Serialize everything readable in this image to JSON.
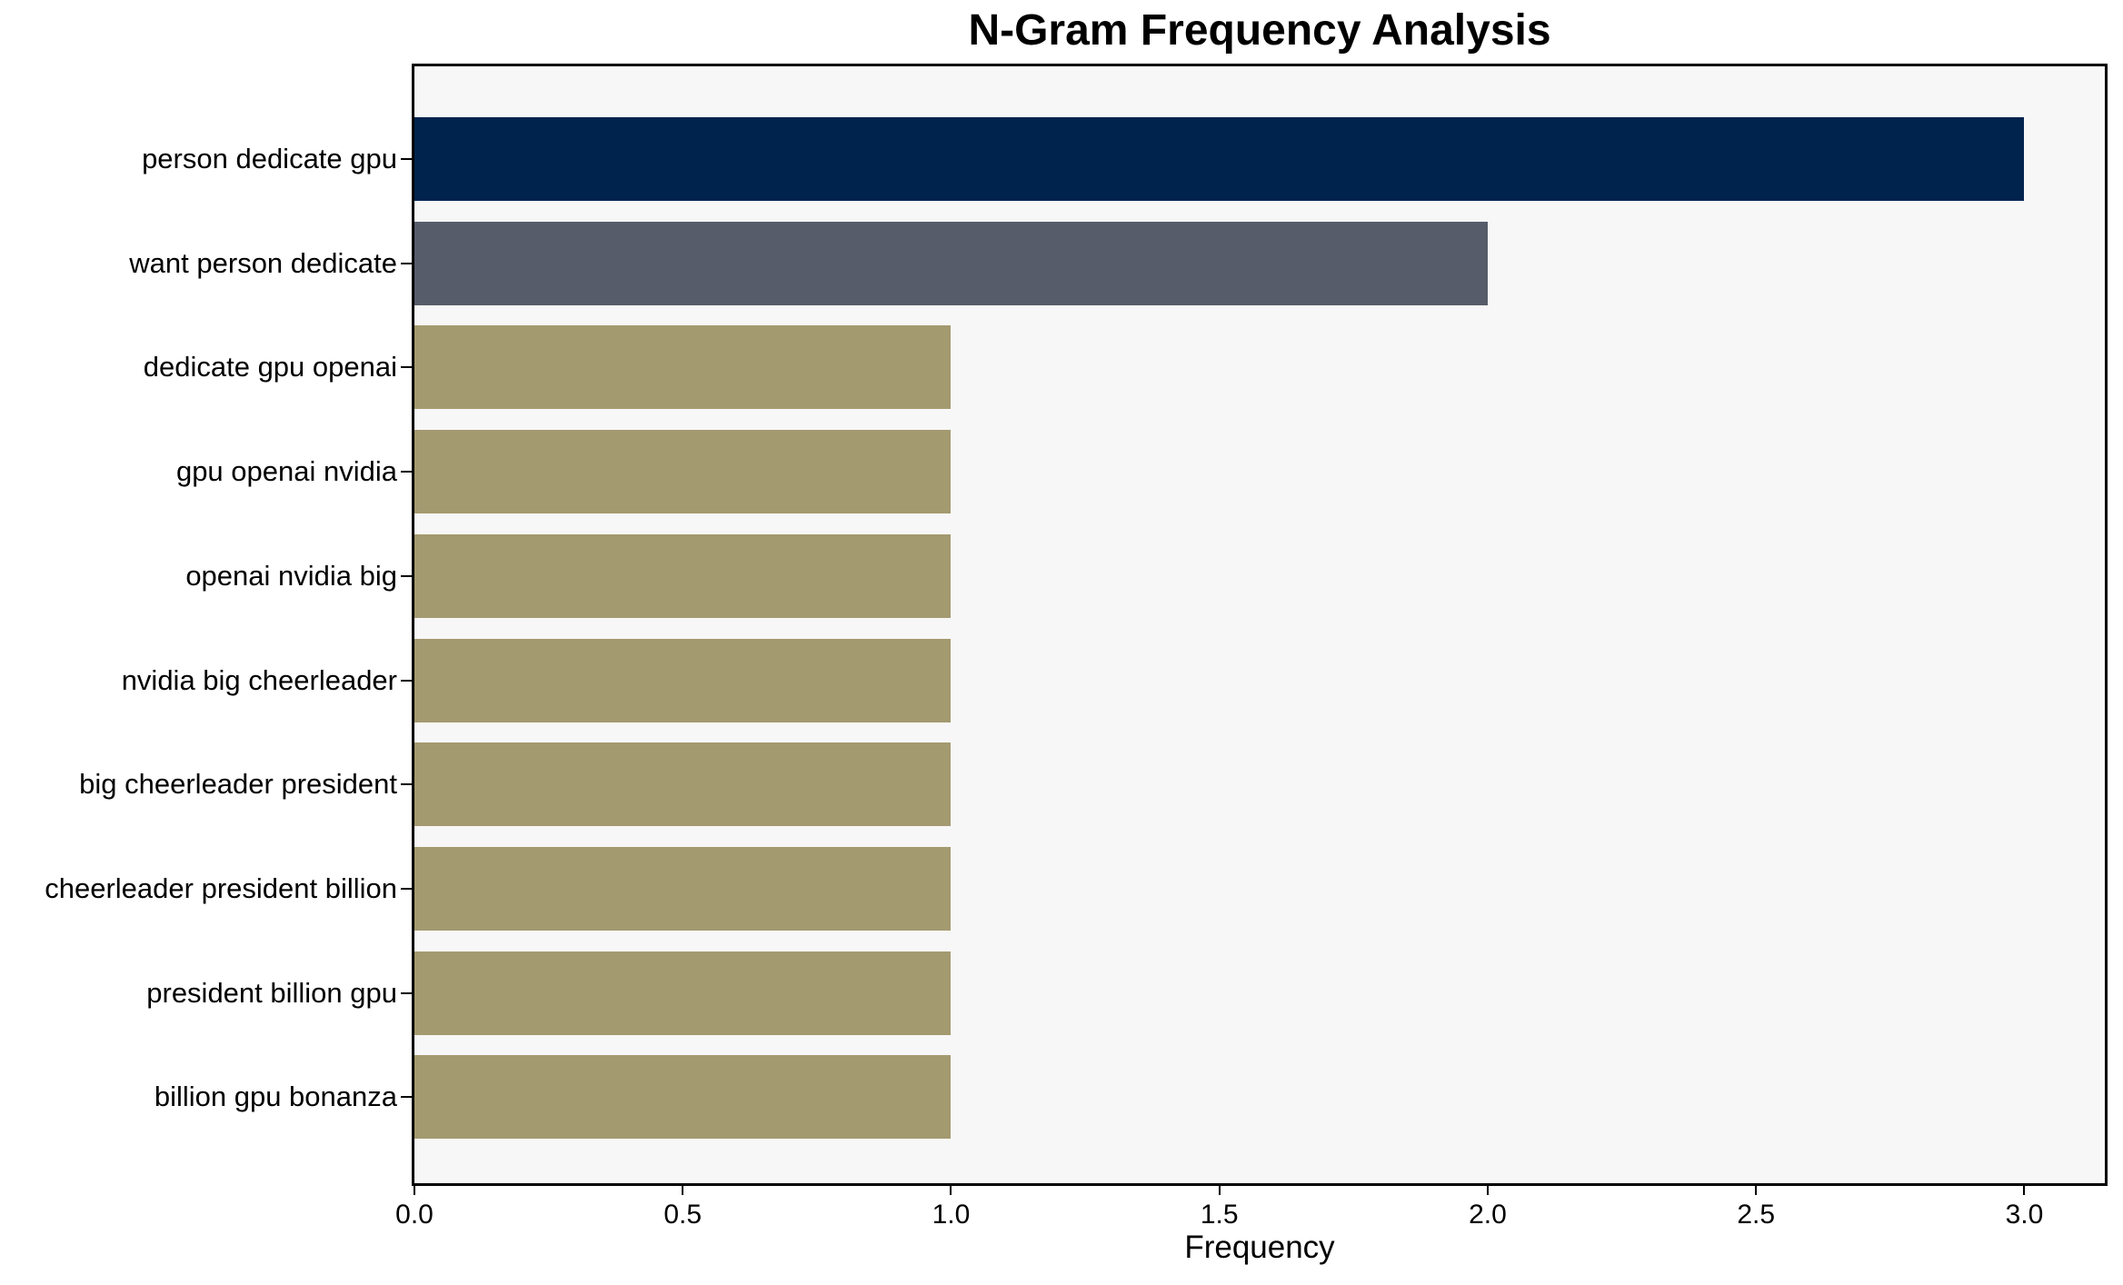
{
  "chart_data": {
    "type": "bar",
    "orientation": "horizontal",
    "title": "N-Gram Frequency Analysis",
    "xlabel": "Frequency",
    "ylabel": "",
    "categories": [
      "person dedicate gpu",
      "want person dedicate",
      "dedicate gpu openai",
      "gpu openai nvidia",
      "openai nvidia big",
      "nvidia big cheerleader",
      "big cheerleader president",
      "cheerleader president billion",
      "president billion gpu",
      "billion gpu bonanza"
    ],
    "values": [
      3,
      2,
      1,
      1,
      1,
      1,
      1,
      1,
      1,
      1
    ],
    "bar_colors": [
      "#00234e",
      "#565c69",
      "#a49a70",
      "#a49a70",
      "#a49a70",
      "#a49a70",
      "#a49a70",
      "#a49a70",
      "#a49a70",
      "#a49a70"
    ],
    "xlim": [
      0,
      3.15
    ],
    "xticks": [
      0.0,
      0.5,
      1.0,
      1.5,
      2.0,
      2.5,
      3.0
    ],
    "xtick_labels": [
      "0.0",
      "0.5",
      "1.0",
      "1.5",
      "2.0",
      "2.5",
      "3.0"
    ],
    "grid": false,
    "legend_position": "none",
    "plot_background": "#f7f7f7",
    "figure_background": "#ffffff",
    "spine_color": "#000000"
  }
}
